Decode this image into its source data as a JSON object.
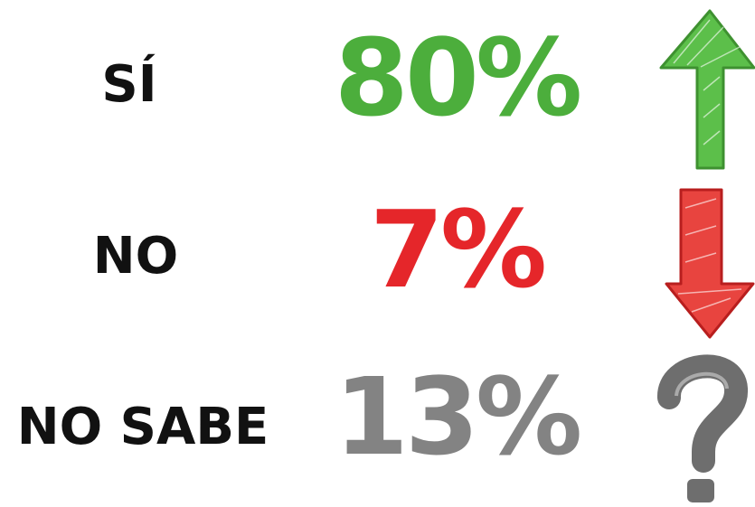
{
  "rows": [
    {
      "label": "SÍ",
      "value": "80%",
      "color": "#4cae3c"
    },
    {
      "label": "NO",
      "value": "7%",
      "color": "#e5262a"
    },
    {
      "label": "NO SABE",
      "value": "13%",
      "color": "#838383"
    }
  ]
}
